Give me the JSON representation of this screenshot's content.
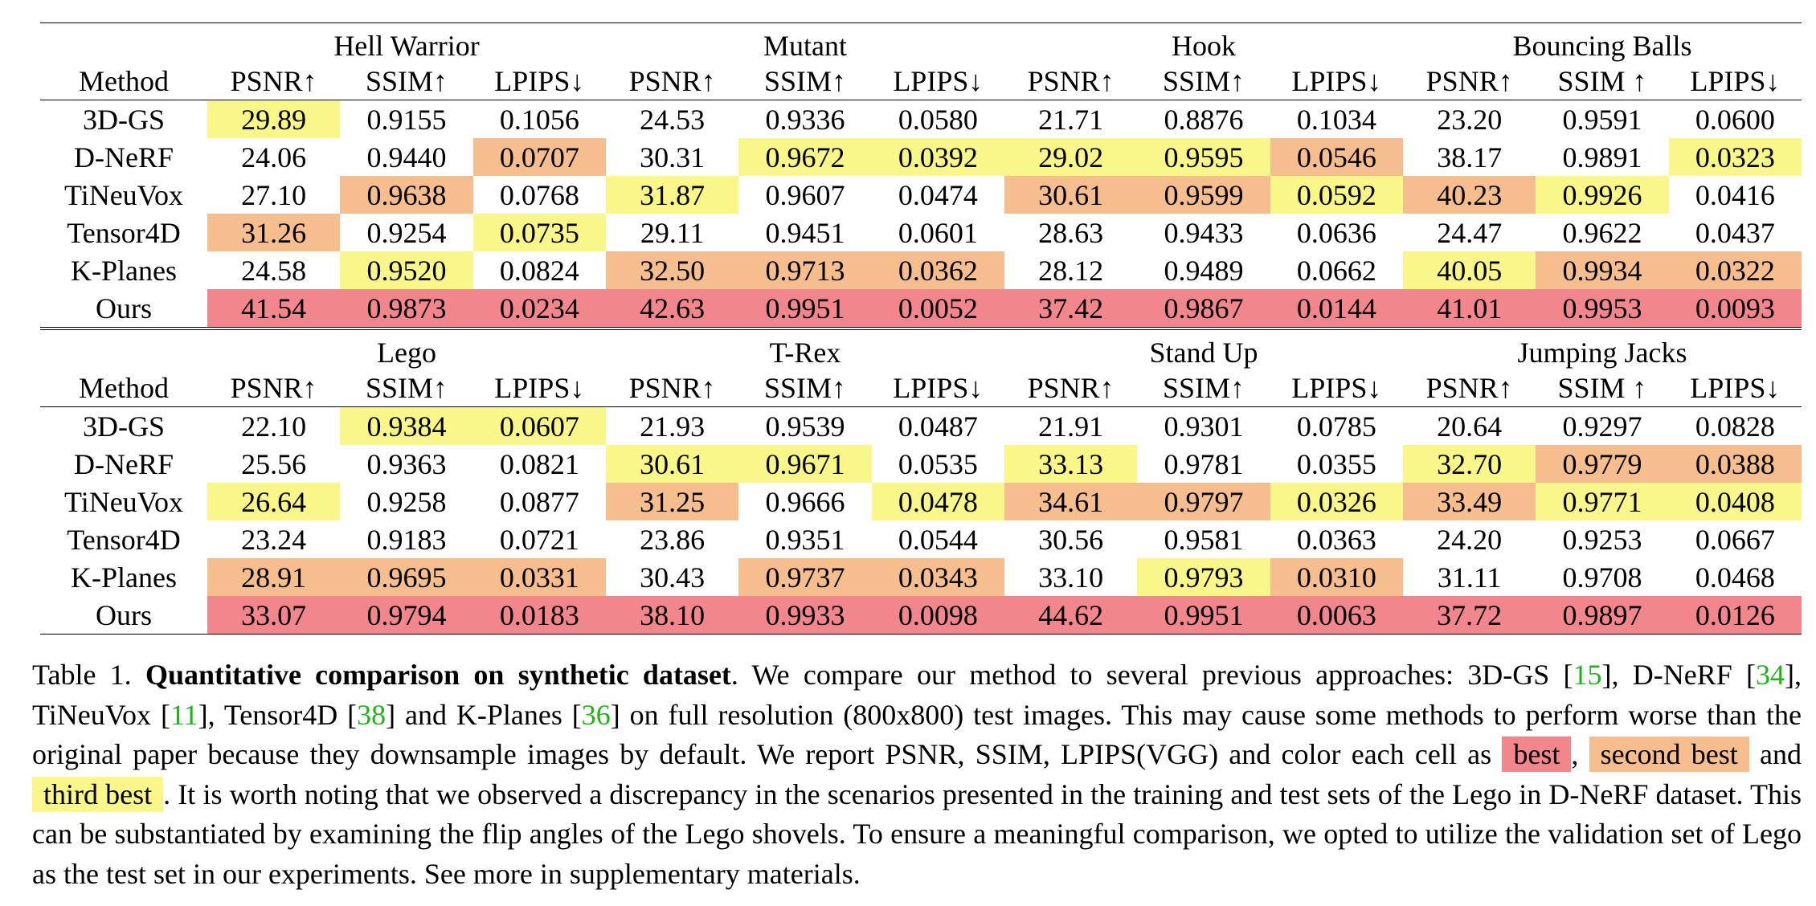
{
  "colors": {
    "best": "#f2868d",
    "second_best": "#f6bd8e",
    "third_best": "#f9f68a"
  },
  "method_header": "Method",
  "metric_headers": [
    "PSNR↑",
    "SSIM↑",
    "LPIPS↓",
    "PSNR↑",
    "SSIM↑",
    "LPIPS↓",
    "PSNR↑",
    "SSIM↑",
    "LPIPS↓",
    "PSNR↑",
    "SSIM ↑",
    "LPIPS↓"
  ],
  "tables": [
    {
      "scenes": [
        "Hell Warrior",
        "Mutant",
        "Hook",
        "Bouncing Balls"
      ],
      "rows": [
        {
          "method": "3D-GS",
          "cells": [
            {
              "v": "29.89",
              "r": "third"
            },
            {
              "v": "0.9155"
            },
            {
              "v": "0.1056"
            },
            {
              "v": "24.53"
            },
            {
              "v": "0.9336"
            },
            {
              "v": "0.0580"
            },
            {
              "v": "21.71"
            },
            {
              "v": "0.8876"
            },
            {
              "v": "0.1034"
            },
            {
              "v": "23.20"
            },
            {
              "v": "0.9591"
            },
            {
              "v": "0.0600"
            }
          ]
        },
        {
          "method": "D-NeRF",
          "cells": [
            {
              "v": "24.06"
            },
            {
              "v": "0.9440"
            },
            {
              "v": "0.0707",
              "r": "second"
            },
            {
              "v": "30.31"
            },
            {
              "v": "0.9672",
              "r": "third"
            },
            {
              "v": "0.0392",
              "r": "third"
            },
            {
              "v": "29.02",
              "r": "third"
            },
            {
              "v": "0.9595",
              "r": "third"
            },
            {
              "v": "0.0546",
              "r": "second"
            },
            {
              "v": "38.17"
            },
            {
              "v": "0.9891"
            },
            {
              "v": "0.0323",
              "r": "third"
            }
          ]
        },
        {
          "method": "TiNeuVox",
          "cells": [
            {
              "v": "27.10"
            },
            {
              "v": "0.9638",
              "r": "second"
            },
            {
              "v": "0.0768"
            },
            {
              "v": "31.87",
              "r": "third"
            },
            {
              "v": "0.9607"
            },
            {
              "v": "0.0474"
            },
            {
              "v": "30.61",
              "r": "second"
            },
            {
              "v": "0.9599",
              "r": "second"
            },
            {
              "v": "0.0592",
              "r": "third"
            },
            {
              "v": "40.23",
              "r": "second"
            },
            {
              "v": "0.9926",
              "r": "third"
            },
            {
              "v": "0.0416"
            }
          ]
        },
        {
          "method": "Tensor4D",
          "cells": [
            {
              "v": "31.26",
              "r": "second"
            },
            {
              "v": "0.9254"
            },
            {
              "v": "0.0735",
              "r": "third"
            },
            {
              "v": "29.11"
            },
            {
              "v": "0.9451"
            },
            {
              "v": "0.0601"
            },
            {
              "v": "28.63"
            },
            {
              "v": "0.9433"
            },
            {
              "v": "0.0636"
            },
            {
              "v": "24.47"
            },
            {
              "v": "0.9622"
            },
            {
              "v": "0.0437"
            }
          ]
        },
        {
          "method": "K-Planes",
          "cells": [
            {
              "v": "24.58"
            },
            {
              "v": "0.9520",
              "r": "third"
            },
            {
              "v": "0.0824"
            },
            {
              "v": "32.50",
              "r": "second"
            },
            {
              "v": "0.9713",
              "r": "second"
            },
            {
              "v": "0.0362",
              "r": "second"
            },
            {
              "v": "28.12"
            },
            {
              "v": "0.9489"
            },
            {
              "v": "0.0662"
            },
            {
              "v": "40.05",
              "r": "third"
            },
            {
              "v": "0.9934",
              "r": "second"
            },
            {
              "v": "0.0322",
              "r": "second"
            }
          ]
        },
        {
          "method": "Ours",
          "cells": [
            {
              "v": "41.54",
              "r": "best"
            },
            {
              "v": "0.9873",
              "r": "best"
            },
            {
              "v": "0.0234",
              "r": "best"
            },
            {
              "v": "42.63",
              "r": "best"
            },
            {
              "v": "0.9951",
              "r": "best"
            },
            {
              "v": "0.0052",
              "r": "best"
            },
            {
              "v": "37.42",
              "r": "best"
            },
            {
              "v": "0.9867",
              "r": "best"
            },
            {
              "v": "0.0144",
              "r": "best"
            },
            {
              "v": "41.01",
              "r": "best"
            },
            {
              "v": "0.9953",
              "r": "best"
            },
            {
              "v": "0.0093",
              "r": "best"
            }
          ]
        }
      ]
    },
    {
      "scenes": [
        "Lego",
        "T-Rex",
        "Stand Up",
        "Jumping Jacks"
      ],
      "rows": [
        {
          "method": "3D-GS",
          "cells": [
            {
              "v": "22.10"
            },
            {
              "v": "0.9384",
              "r": "third"
            },
            {
              "v": "0.0607",
              "r": "third"
            },
            {
              "v": "21.93"
            },
            {
              "v": "0.9539"
            },
            {
              "v": "0.0487"
            },
            {
              "v": "21.91"
            },
            {
              "v": "0.9301"
            },
            {
              "v": "0.0785"
            },
            {
              "v": "20.64"
            },
            {
              "v": "0.9297"
            },
            {
              "v": "0.0828"
            }
          ]
        },
        {
          "method": "D-NeRF",
          "cells": [
            {
              "v": "25.56"
            },
            {
              "v": "0.9363"
            },
            {
              "v": "0.0821"
            },
            {
              "v": "30.61",
              "r": "third"
            },
            {
              "v": "0.9671",
              "r": "third"
            },
            {
              "v": "0.0535"
            },
            {
              "v": "33.13",
              "r": "third"
            },
            {
              "v": "0.9781"
            },
            {
              "v": "0.0355"
            },
            {
              "v": "32.70",
              "r": "third"
            },
            {
              "v": "0.9779",
              "r": "second"
            },
            {
              "v": "0.0388",
              "r": "second"
            }
          ]
        },
        {
          "method": "TiNeuVox",
          "cells": [
            {
              "v": "26.64",
              "r": "third"
            },
            {
              "v": "0.9258"
            },
            {
              "v": "0.0877"
            },
            {
              "v": "31.25",
              "r": "second"
            },
            {
              "v": "0.9666"
            },
            {
              "v": "0.0478",
              "r": "third"
            },
            {
              "v": "34.61",
              "r": "second"
            },
            {
              "v": "0.9797",
              "r": "second"
            },
            {
              "v": "0.0326",
              "r": "third"
            },
            {
              "v": "33.49",
              "r": "second"
            },
            {
              "v": "0.9771",
              "r": "third"
            },
            {
              "v": "0.0408",
              "r": "third"
            }
          ]
        },
        {
          "method": "Tensor4D",
          "cells": [
            {
              "v": "23.24"
            },
            {
              "v": "0.9183"
            },
            {
              "v": "0.0721"
            },
            {
              "v": "23.86"
            },
            {
              "v": "0.9351"
            },
            {
              "v": "0.0544"
            },
            {
              "v": "30.56"
            },
            {
              "v": "0.9581"
            },
            {
              "v": "0.0363"
            },
            {
              "v": "24.20"
            },
            {
              "v": "0.9253"
            },
            {
              "v": "0.0667"
            }
          ]
        },
        {
          "method": "K-Planes",
          "cells": [
            {
              "v": "28.91",
              "r": "second"
            },
            {
              "v": "0.9695",
              "r": "second"
            },
            {
              "v": "0.0331",
              "r": "second"
            },
            {
              "v": "30.43"
            },
            {
              "v": "0.9737",
              "r": "second"
            },
            {
              "v": "0.0343",
              "r": "second"
            },
            {
              "v": "33.10"
            },
            {
              "v": "0.9793",
              "r": "third"
            },
            {
              "v": "0.0310",
              "r": "second"
            },
            {
              "v": "31.11"
            },
            {
              "v": "0.9708"
            },
            {
              "v": "0.0468"
            }
          ]
        },
        {
          "method": "Ours",
          "cells": [
            {
              "v": "33.07",
              "r": "best"
            },
            {
              "v": "0.9794",
              "r": "best"
            },
            {
              "v": "0.0183",
              "r": "best"
            },
            {
              "v": "38.10",
              "r": "best"
            },
            {
              "v": "0.9933",
              "r": "best"
            },
            {
              "v": "0.0098",
              "r": "best"
            },
            {
              "v": "44.62",
              "r": "best"
            },
            {
              "v": "0.9951",
              "r": "best"
            },
            {
              "v": "0.0063",
              "r": "best"
            },
            {
              "v": "37.72",
              "r": "best"
            },
            {
              "v": "0.9897",
              "r": "best"
            },
            {
              "v": "0.0126",
              "r": "best"
            }
          ]
        }
      ]
    }
  ],
  "caption": {
    "label": "Table 1.",
    "title": "Quantitative comparison on synthetic dataset",
    "p1": ". We compare our method to several previous approaches: 3D-GS [",
    "ref1": "15",
    "p2": "], D-NeRF [",
    "ref2": "34",
    "p3": "], TiNeuVox [",
    "ref3": "11",
    "p4": "], Tensor4D [",
    "ref4": "38",
    "p5": "] and K-Planes [",
    "ref5": "36",
    "p6": "] on full resolution (800x800) test images. This may cause some methods to perform worse than the original paper because they downsample images by default. We report PSNR, SSIM, LPIPS(VGG) and color each cell as ",
    "best_label": "best",
    "comma": ",",
    "second_label": "second best",
    "and_word": "and",
    "third_label": "third best",
    "p7": ". It is worth noting that we observed a discrepancy in the scenarios presented in the training and test sets of the Lego in D-NeRF dataset. This can be substantiated by examining the flip angles of the Lego shovels. To ensure a meaningful comparison, we opted to utilize the validation set of Lego as the test set in our experiments. See more in supplementary materials."
  }
}
